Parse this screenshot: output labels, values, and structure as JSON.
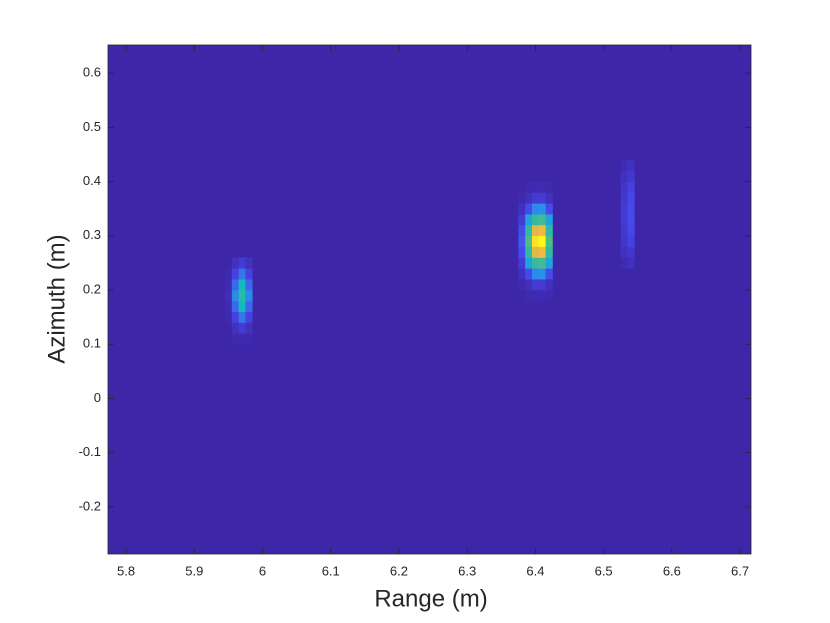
{
  "chart_data": {
    "type": "heatmap",
    "xlabel": "Range (m)",
    "ylabel": "Azimuth (m)",
    "xlim": [
      5.7735,
      6.716
    ],
    "ylim": [
      -0.287,
      0.652
    ],
    "xticks": [
      5.8,
      5.9,
      6,
      6.1,
      6.2,
      6.3,
      6.4,
      6.5,
      6.6,
      6.7
    ],
    "yticks": [
      -0.2,
      -0.1,
      0,
      0.1,
      0.2,
      0.3,
      0.4,
      0.5,
      0.6
    ],
    "clim": [
      0,
      1
    ],
    "colormap": "parula",
    "cell_size": [
      0.01,
      0.02
    ],
    "columns": [
      {
        "x": 5.95,
        "y": [
          0.15,
          0.17,
          0.19,
          0.21,
          0.23
        ],
        "z": [
          0.01,
          0.02,
          0.03,
          0.02,
          0.01
        ]
      },
      {
        "x": 5.96,
        "y": [
          0.11,
          0.13,
          0.15,
          0.17,
          0.19,
          0.21,
          0.23,
          0.25
        ],
        "z": [
          0.01,
          0.04,
          0.1,
          0.18,
          0.23,
          0.18,
          0.1,
          0.04
        ]
      },
      {
        "x": 5.97,
        "y": [
          0.11,
          0.13,
          0.15,
          0.17,
          0.19,
          0.21,
          0.23,
          0.25
        ],
        "z": [
          0.02,
          0.08,
          0.2,
          0.37,
          0.45,
          0.37,
          0.2,
          0.08
        ]
      },
      {
        "x": 5.98,
        "y": [
          0.11,
          0.13,
          0.15,
          0.17,
          0.19,
          0.21,
          0.23,
          0.25
        ],
        "z": [
          0.01,
          0.04,
          0.1,
          0.18,
          0.23,
          0.18,
          0.1,
          0.04
        ]
      },
      {
        "x": 6.38,
        "y": [
          0.21,
          0.23,
          0.25,
          0.27,
          0.29,
          0.31,
          0.33,
          0.35,
          0.37
        ],
        "z": [
          0.01,
          0.04,
          0.08,
          0.13,
          0.15,
          0.13,
          0.08,
          0.04,
          0.01
        ]
      },
      {
        "x": 6.39,
        "y": [
          0.19,
          0.21,
          0.23,
          0.25,
          0.27,
          0.29,
          0.31,
          0.33,
          0.35,
          0.37,
          0.39
        ],
        "z": [
          0.01,
          0.04,
          0.13,
          0.29,
          0.47,
          0.55,
          0.47,
          0.29,
          0.13,
          0.04,
          0.01
        ]
      },
      {
        "x": 6.4,
        "y": [
          0.19,
          0.21,
          0.23,
          0.25,
          0.27,
          0.29,
          0.31,
          0.33,
          0.35,
          0.37,
          0.39
        ],
        "z": [
          0.02,
          0.08,
          0.23,
          0.5,
          0.81,
          0.95,
          0.81,
          0.5,
          0.23,
          0.08,
          0.02
        ]
      },
      {
        "x": 6.41,
        "y": [
          0.19,
          0.21,
          0.23,
          0.25,
          0.27,
          0.29,
          0.31,
          0.33,
          0.35,
          0.37,
          0.39
        ],
        "z": [
          0.02,
          0.08,
          0.24,
          0.53,
          0.85,
          1.0,
          0.85,
          0.53,
          0.24,
          0.08,
          0.02
        ]
      },
      {
        "x": 6.42,
        "y": [
          0.19,
          0.21,
          0.23,
          0.25,
          0.27,
          0.29,
          0.31,
          0.33,
          0.35,
          0.37,
          0.39
        ],
        "z": [
          0.01,
          0.04,
          0.13,
          0.29,
          0.47,
          0.55,
          0.47,
          0.29,
          0.13,
          0.04,
          0.01
        ]
      },
      {
        "x": 6.53,
        "y": [
          0.25,
          0.27,
          0.29,
          0.31,
          0.33,
          0.35,
          0.37,
          0.39,
          0.41,
          0.43
        ],
        "z": [
          0.02,
          0.04,
          0.06,
          0.07,
          0.08,
          0.08,
          0.07,
          0.06,
          0.04,
          0.02
        ]
      },
      {
        "x": 6.54,
        "y": [
          0.25,
          0.27,
          0.29,
          0.31,
          0.33,
          0.35,
          0.37,
          0.39,
          0.41,
          0.43
        ],
        "z": [
          0.04,
          0.07,
          0.1,
          0.12,
          0.13,
          0.13,
          0.12,
          0.1,
          0.07,
          0.04
        ]
      }
    ]
  }
}
